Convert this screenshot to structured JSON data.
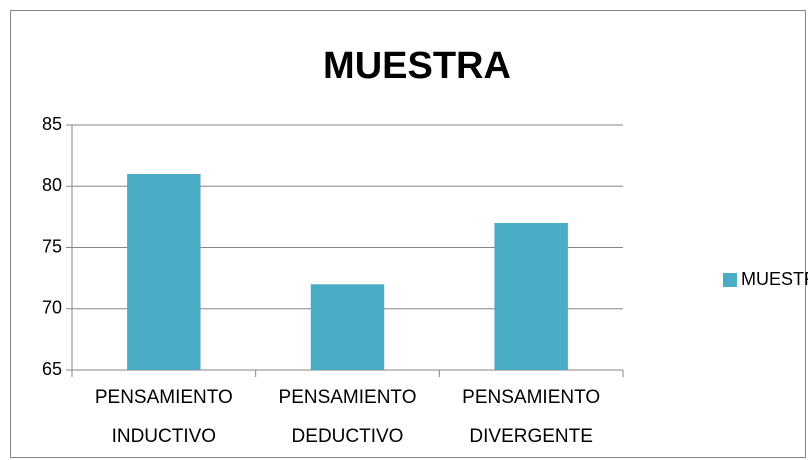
{
  "chart_data": {
    "type": "bar",
    "title": "MUESTRA",
    "categories": [
      "PENSAMIENTO INDUCTIVO",
      "PENSAMIENTO DEDUCTIVO",
      "PENSAMIENTO DIVERGENTE"
    ],
    "series": [
      {
        "name": "MUESTRA",
        "color": "#4bacc6",
        "values": [
          81,
          72,
          77
        ]
      }
    ],
    "ylim": [
      65,
      85
    ],
    "yticks": [
      65,
      70,
      75,
      80,
      85
    ],
    "grid": true,
    "legend": "right"
  }
}
